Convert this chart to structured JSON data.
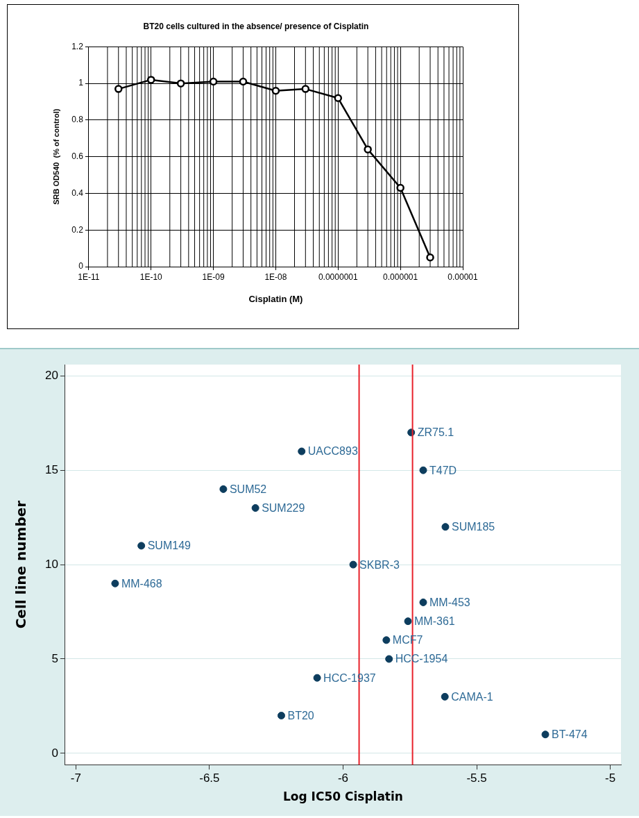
{
  "chart_data": [
    {
      "type": "line",
      "title": "BT20 cells cultured in the absence/ presence of Cisplatin",
      "xlabel": "Cisplatin (M)",
      "ylabel": "SRB OD540  (% of control)",
      "log": "x",
      "grid": true,
      "marker": "circle",
      "line_style": "solid",
      "x": [
        3e-11,
        1e-10,
        3e-10,
        1e-09,
        3e-09,
        1e-08,
        3e-08,
        1e-07,
        3e-07,
        1e-06,
        3e-06
      ],
      "series": [
        {
          "color": "#000000",
          "values": [
            0.97,
            1.02,
            1.0,
            1.01,
            1.01,
            0.96,
            0.97,
            0.92,
            0.64,
            0.43,
            0.05
          ]
        }
      ],
      "xlim": [
        1e-11,
        1e-05
      ],
      "xticks": [
        {
          "value": 1e-11,
          "label": "1E-11"
        },
        {
          "value": 1e-10,
          "label": "1E-10"
        },
        {
          "value": 1e-09,
          "label": "1E-09"
        },
        {
          "value": 1e-08,
          "label": "1E-08"
        },
        {
          "value": 1e-07,
          "label": "0.0000001"
        },
        {
          "value": 1e-06,
          "label": "0.000001"
        },
        {
          "value": 1e-05,
          "label": "0.00001"
        }
      ],
      "ylim": [
        0,
        1.2
      ],
      "yticks": [
        0,
        0.2,
        0.4,
        0.6,
        0.8,
        1,
        1.2
      ]
    },
    {
      "type": "scatter",
      "xlabel": "Log IC50 Cisplatin",
      "ylabel": "Cell line number",
      "grid": "y",
      "marker": "circle",
      "x": [
        -5.745,
        -6.155,
        -5.7,
        -6.448,
        -6.328,
        -5.617,
        -6.755,
        -5.962,
        -6.853,
        -5.7,
        -5.757,
        -5.838,
        -5.828,
        -6.097,
        -5.619,
        -6.231,
        -5.243
      ],
      "series": [
        {
          "color": "#0d3d5e",
          "values": [
            17,
            16,
            15,
            14,
            13,
            12,
            11,
            10,
            9,
            8,
            7,
            6,
            5,
            4,
            3,
            2,
            1
          ]
        }
      ],
      "xlim": [
        -7.04,
        -4.96
      ],
      "xticks": [
        -7,
        -6.5,
        -6,
        -5.5,
        -5
      ],
      "ylim": [
        -0.6,
        20.6
      ],
      "yticks": [
        0,
        5,
        10,
        15,
        20
      ],
      "ref_lines": [
        {
          "axis": "x",
          "value": -5.94,
          "color": "#e8202a"
        },
        {
          "axis": "x",
          "value": -5.74,
          "color": "#e8202a"
        }
      ],
      "annotations": [
        {
          "text": "ZR75.1",
          "x": -5.745,
          "y": 17
        },
        {
          "text": "UACC893",
          "x": -6.155,
          "y": 16
        },
        {
          "text": "T47D",
          "x": -5.7,
          "y": 15
        },
        {
          "text": "SUM52",
          "x": -6.448,
          "y": 14
        },
        {
          "text": "SUM229",
          "x": -6.328,
          "y": 13
        },
        {
          "text": "SUM185",
          "x": -5.617,
          "y": 12
        },
        {
          "text": "SUM149",
          "x": -6.755,
          "y": 11
        },
        {
          "text": "SKBR-3",
          "x": -5.962,
          "y": 10
        },
        {
          "text": "MM-468",
          "x": -6.853,
          "y": 9
        },
        {
          "text": "MM-453",
          "x": -5.7,
          "y": 8
        },
        {
          "text": "MM-361",
          "x": -5.757,
          "y": 7
        },
        {
          "text": "MCF7",
          "x": -5.838,
          "y": 6
        },
        {
          "text": "HCC-1954",
          "x": -5.828,
          "y": 5
        },
        {
          "text": "HCC-1937",
          "x": -6.097,
          "y": 4
        },
        {
          "text": "CAMA-1",
          "x": -5.619,
          "y": 3
        },
        {
          "text": "BT20",
          "x": -6.231,
          "y": 2
        },
        {
          "text": "BT-474",
          "x": -5.243,
          "y": 1
        }
      ]
    }
  ]
}
